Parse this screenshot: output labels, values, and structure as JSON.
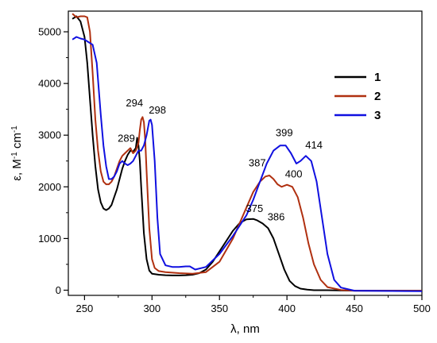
{
  "chart_data": {
    "type": "line",
    "xlabel": "λ, nm",
    "ylabel_parts": {
      "base": "ε, M",
      "sup1": "-1",
      "mid": " cm",
      "sup2": "-1"
    },
    "xlim": [
      238,
      500
    ],
    "ylim": [
      -100,
      5400
    ],
    "xticks": [
      250,
      300,
      350,
      400,
      450,
      500
    ],
    "yticks": [
      0,
      1000,
      2000,
      3000,
      4000,
      5000
    ],
    "legend_position": "right",
    "series": [
      {
        "name": "1",
        "color": "#000000",
        "x": [
          241,
          244,
          247,
          250,
          252,
          254,
          256,
          258,
          260,
          262,
          264,
          266,
          268,
          270,
          272,
          274,
          276,
          278,
          280,
          282,
          284,
          286,
          288,
          289,
          290,
          291,
          292,
          294,
          296,
          298,
          300,
          305,
          310,
          315,
          320,
          325,
          330,
          335,
          340,
          345,
          350,
          355,
          360,
          365,
          370,
          375,
          378,
          382,
          386,
          390,
          394,
          398,
          402,
          406,
          410,
          415,
          420,
          430,
          450,
          500
        ],
        "y": [
          5250,
          5300,
          5200,
          4900,
          4400,
          3700,
          3000,
          2400,
          1950,
          1700,
          1580,
          1550,
          1580,
          1650,
          1800,
          1950,
          2150,
          2350,
          2500,
          2620,
          2700,
          2680,
          2750,
          2950,
          2800,
          2500,
          2000,
          1100,
          600,
          380,
          320,
          300,
          290,
          285,
          285,
          290,
          300,
          330,
          400,
          550,
          750,
          950,
          1150,
          1300,
          1370,
          1380,
          1350,
          1290,
          1200,
          1000,
          700,
          400,
          180,
          80,
          30,
          10,
          0,
          0,
          -10,
          -10
        ]
      },
      {
        "name": "2",
        "color": "#b03010",
        "x": [
          241,
          244,
          247,
          250,
          252,
          254,
          256,
          258,
          260,
          262,
          264,
          266,
          268,
          270,
          272,
          274,
          276,
          278,
          280,
          282,
          284,
          286,
          288,
          290,
          291,
          292,
          293,
          294,
          295,
          296,
          298,
          300,
          302,
          305,
          310,
          315,
          320,
          330,
          340,
          350,
          360,
          365,
          370,
          375,
          380,
          384,
          387,
          390,
          393,
          396,
          400,
          404,
          408,
          412,
          416,
          420,
          425,
          430,
          440,
          450,
          500
        ],
        "y": [
          5350,
          5280,
          5300,
          5300,
          5280,
          5000,
          4200,
          3300,
          2700,
          2300,
          2100,
          2050,
          2050,
          2100,
          2200,
          2350,
          2500,
          2600,
          2650,
          2700,
          2750,
          2650,
          2700,
          2850,
          3100,
          3300,
          3350,
          3250,
          2900,
          2300,
          1200,
          600,
          430,
          370,
          350,
          340,
          330,
          320,
          350,
          550,
          1000,
          1300,
          1600,
          1900,
          2100,
          2200,
          2220,
          2150,
          2050,
          2000,
          2040,
          2000,
          1800,
          1400,
          900,
          500,
          200,
          60,
          5,
          -10,
          -10
        ]
      },
      {
        "name": "3",
        "color": "#1010e0",
        "x": [
          241,
          244,
          247,
          250,
          253,
          256,
          259,
          262,
          264,
          266,
          268,
          270,
          272,
          274,
          276,
          278,
          280,
          282,
          284,
          286,
          288,
          290,
          292,
          294,
          296,
          298,
          299,
          300,
          302,
          304,
          306,
          310,
          315,
          320,
          325,
          328,
          332,
          340,
          350,
          360,
          370,
          375,
          380,
          385,
          390,
          395,
          399,
          403,
          407,
          410,
          414,
          418,
          422,
          426,
          430,
          435,
          440,
          450,
          500
        ],
        "y": [
          4850,
          4900,
          4870,
          4850,
          4800,
          4750,
          4400,
          3400,
          2800,
          2400,
          2150,
          2150,
          2200,
          2300,
          2450,
          2500,
          2450,
          2420,
          2450,
          2500,
          2600,
          2700,
          2700,
          2800,
          3000,
          3280,
          3300,
          3200,
          2500,
          1400,
          700,
          480,
          450,
          450,
          460,
          460,
          400,
          450,
          700,
          1050,
          1450,
          1750,
          2100,
          2450,
          2700,
          2800,
          2800,
          2650,
          2450,
          2500,
          2600,
          2500,
          2100,
          1400,
          700,
          200,
          50,
          -10,
          -20
        ]
      }
    ],
    "annotations": [
      {
        "text": "289",
        "x": 281,
        "y": 2870
      },
      {
        "text": "294",
        "x": 287,
        "y": 3560
      },
      {
        "text": "298",
        "x": 304,
        "y": 3420
      },
      {
        "text": "375",
        "x": 376,
        "y": 1510
      },
      {
        "text": "386",
        "x": 392,
        "y": 1350
      },
      {
        "text": "387",
        "x": 378,
        "y": 2400
      },
      {
        "text": "400",
        "x": 405,
        "y": 2180
      },
      {
        "text": "399",
        "x": 398,
        "y": 2980
      },
      {
        "text": "414",
        "x": 420,
        "y": 2740
      }
    ]
  }
}
